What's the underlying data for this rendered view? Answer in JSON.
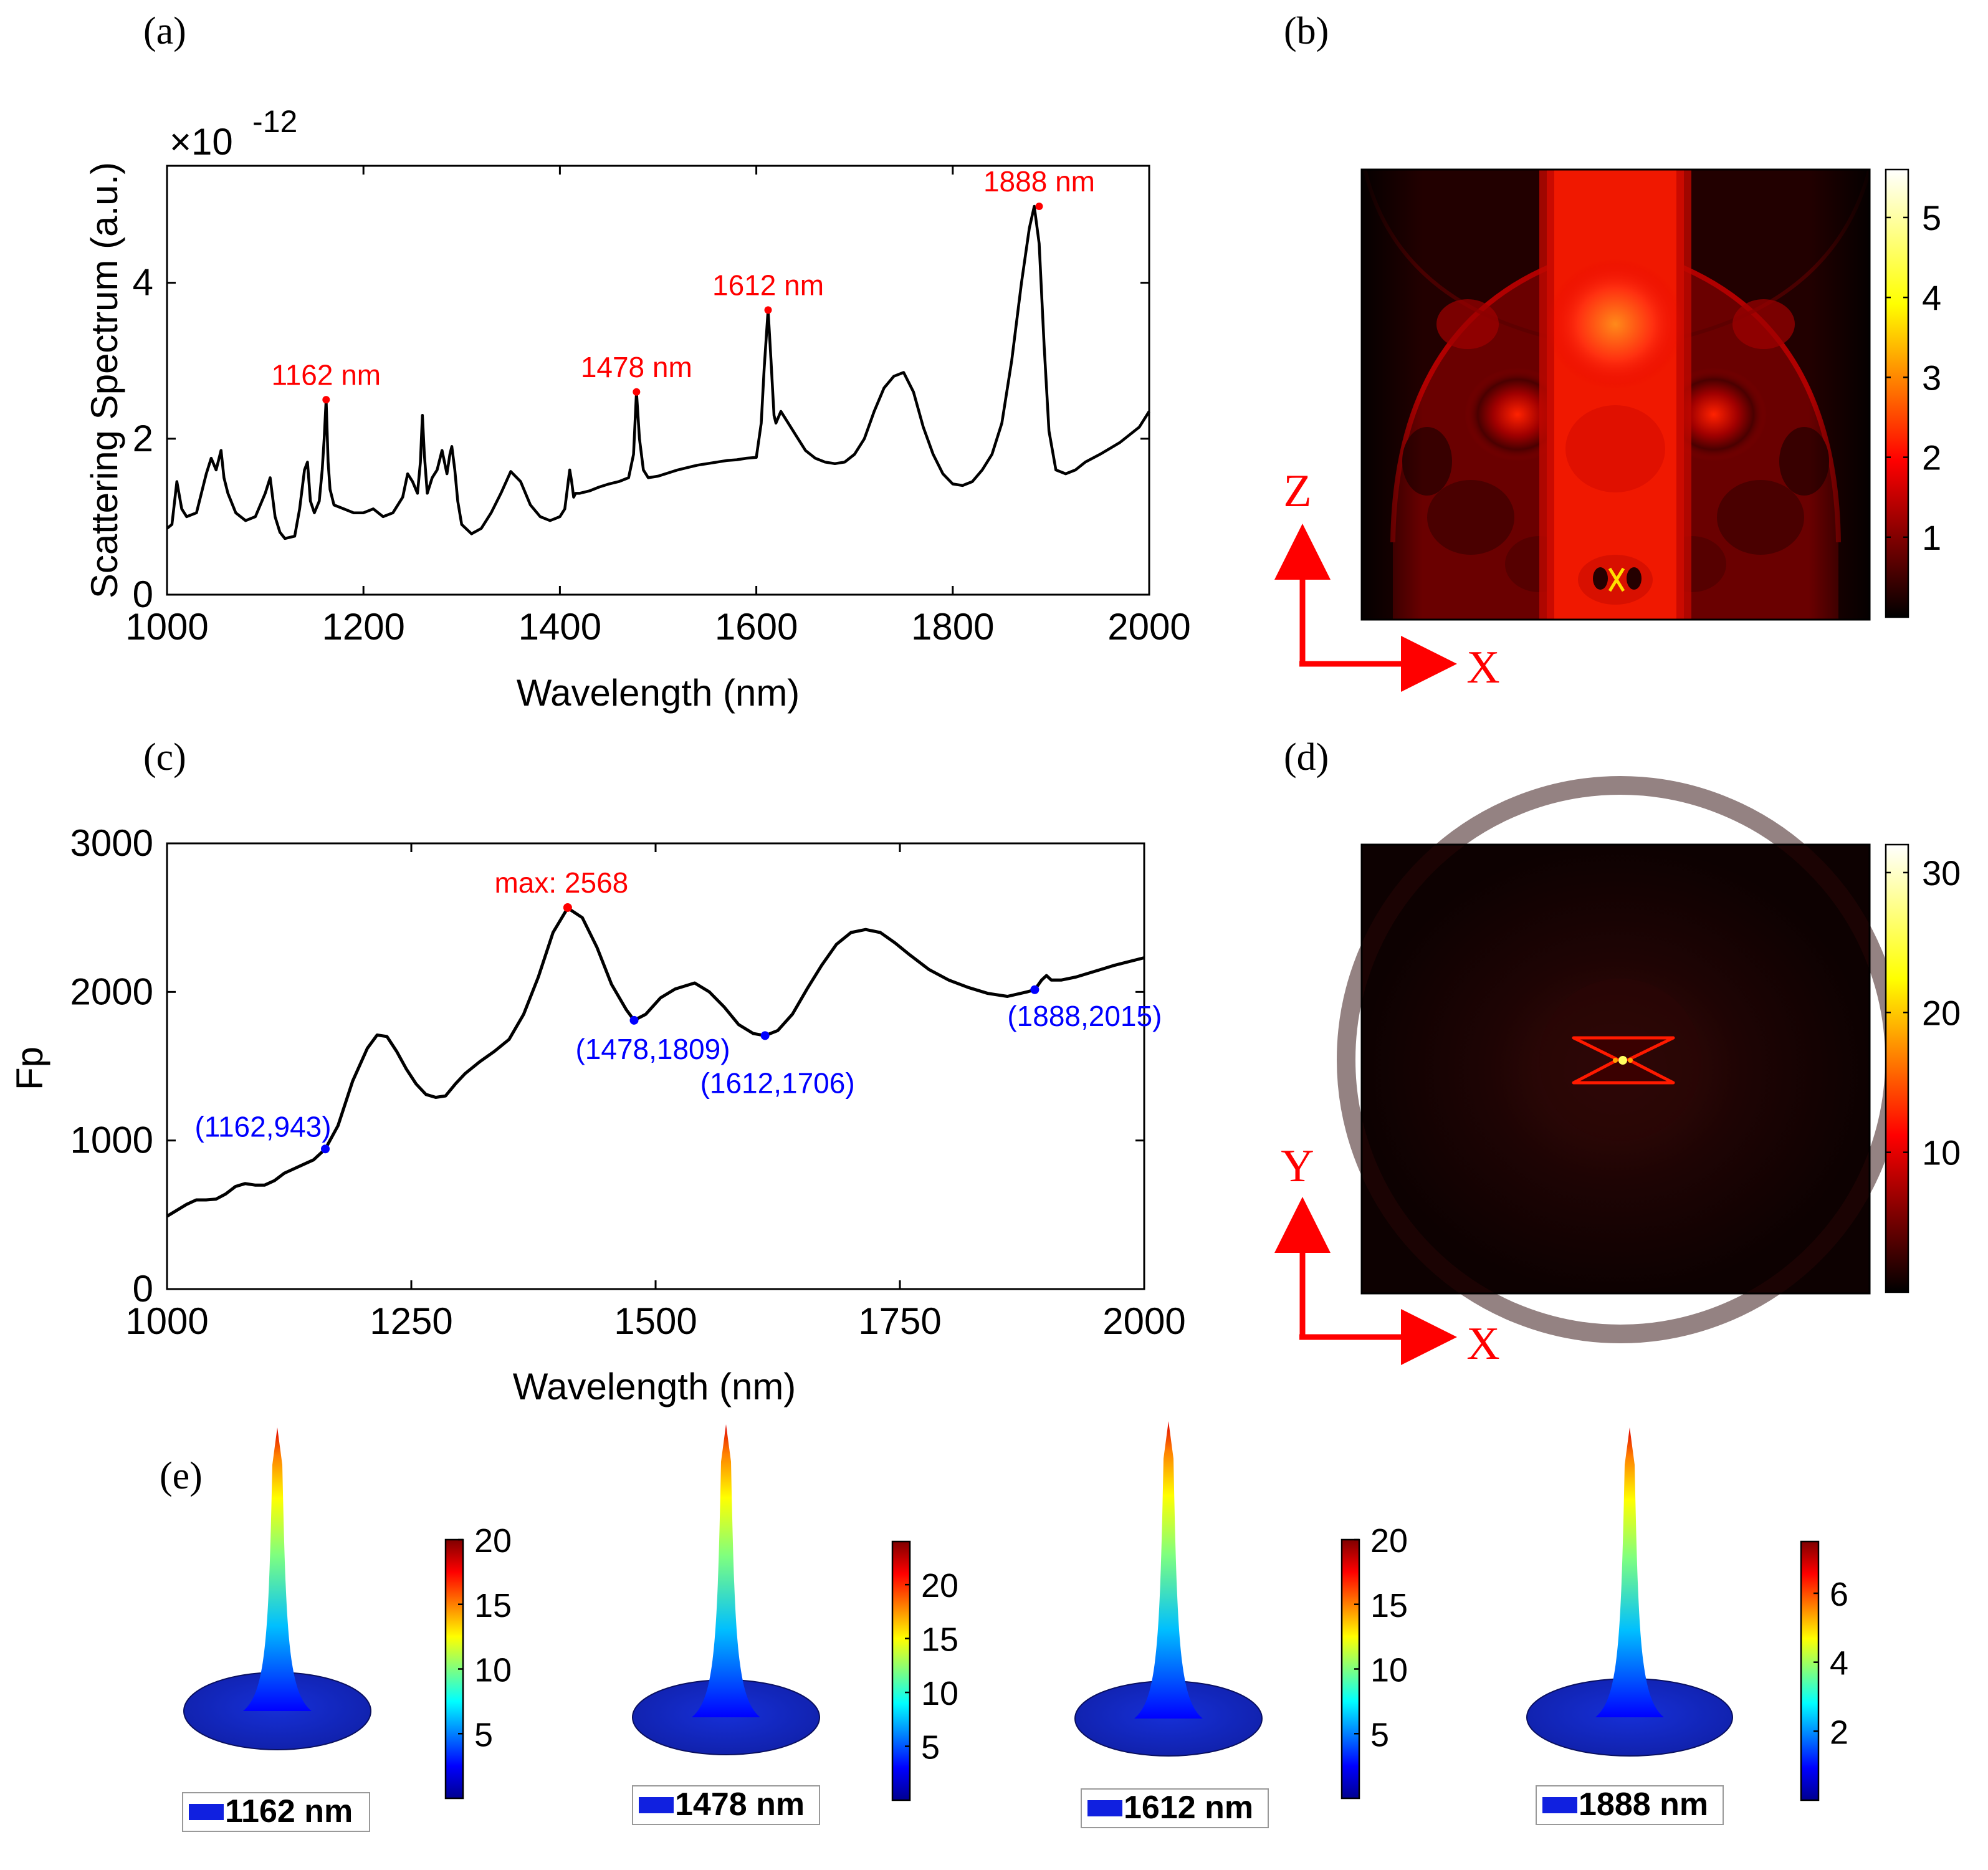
{
  "panels": {
    "a": {
      "label": "(a)"
    },
    "b": {
      "label": "(b)"
    },
    "c": {
      "label": "(c)"
    },
    "d": {
      "label": "(d)"
    },
    "e": {
      "label": "(e)"
    }
  },
  "chart_data": [
    {
      "id": "a",
      "type": "line",
      "xlabel": "Wavelength (nm)",
      "ylabel": "Scattering Spectrum (a.u.)",
      "exponent_prefix": "×10",
      "exponent_power": "-12",
      "xlim": [
        1000,
        2000
      ],
      "ylim": [
        0,
        5.5
      ],
      "xticks": [
        1000,
        1200,
        1400,
        1600,
        1800,
        2000
      ],
      "yticks": [
        0,
        2,
        4
      ],
      "line_color": "#000000",
      "annotation_color": "#ff0000",
      "series": [
        {
          "name": "scattering",
          "x": [
            1000,
            1005,
            1010,
            1015,
            1020,
            1030,
            1040,
            1045,
            1050,
            1055,
            1058,
            1062,
            1070,
            1080,
            1090,
            1100,
            1105,
            1110,
            1115,
            1120,
            1130,
            1135,
            1140,
            1143,
            1146,
            1150,
            1155,
            1158,
            1160,
            1162,
            1164,
            1166,
            1170,
            1180,
            1190,
            1200,
            1210,
            1220,
            1230,
            1240,
            1245,
            1250,
            1255,
            1258,
            1260,
            1262,
            1265,
            1270,
            1275,
            1280,
            1285,
            1288,
            1290,
            1293,
            1296,
            1300,
            1310,
            1320,
            1330,
            1340,
            1350,
            1360,
            1370,
            1380,
            1390,
            1400,
            1405,
            1410,
            1412,
            1414,
            1416,
            1420,
            1430,
            1440,
            1450,
            1460,
            1470,
            1475,
            1478,
            1481,
            1485,
            1490,
            1500,
            1510,
            1520,
            1530,
            1540,
            1550,
            1560,
            1570,
            1580,
            1590,
            1600,
            1605,
            1608,
            1612,
            1615,
            1618,
            1620,
            1625,
            1630,
            1640,
            1650,
            1660,
            1670,
            1680,
            1690,
            1700,
            1710,
            1720,
            1730,
            1740,
            1750,
            1760,
            1770,
            1780,
            1790,
            1800,
            1810,
            1820,
            1830,
            1840,
            1850,
            1860,
            1870,
            1878,
            1883,
            1888,
            1893,
            1898,
            1905,
            1915,
            1925,
            1935,
            1950,
            1970,
            1990,
            2000
          ],
          "y": [
            0.85,
            0.9,
            1.45,
            1.1,
            1.0,
            1.05,
            1.55,
            1.75,
            1.6,
            1.85,
            1.5,
            1.3,
            1.05,
            0.95,
            1.0,
            1.3,
            1.5,
            1.0,
            0.8,
            0.72,
            0.75,
            1.1,
            1.6,
            1.7,
            1.2,
            1.05,
            1.2,
            1.6,
            2.0,
            2.5,
            1.7,
            1.35,
            1.15,
            1.1,
            1.05,
            1.05,
            1.1,
            1.0,
            1.05,
            1.25,
            1.55,
            1.45,
            1.3,
            1.7,
            2.3,
            1.8,
            1.3,
            1.5,
            1.6,
            1.85,
            1.55,
            1.8,
            1.9,
            1.6,
            1.2,
            0.9,
            0.78,
            0.85,
            1.05,
            1.3,
            1.58,
            1.45,
            1.15,
            1.0,
            0.95,
            1.0,
            1.1,
            1.6,
            1.45,
            1.25,
            1.3,
            1.3,
            1.33,
            1.38,
            1.42,
            1.45,
            1.5,
            1.8,
            2.6,
            2.0,
            1.6,
            1.5,
            1.52,
            1.56,
            1.6,
            1.63,
            1.66,
            1.68,
            1.7,
            1.72,
            1.73,
            1.75,
            1.76,
            2.2,
            2.9,
            3.65,
            3.0,
            2.3,
            2.2,
            2.35,
            2.25,
            2.05,
            1.85,
            1.75,
            1.7,
            1.68,
            1.7,
            1.8,
            2.0,
            2.35,
            2.65,
            2.8,
            2.85,
            2.6,
            2.15,
            1.8,
            1.55,
            1.42,
            1.4,
            1.45,
            1.6,
            1.8,
            2.2,
            3.0,
            4.0,
            4.7,
            4.98,
            4.5,
            3.2,
            2.1,
            1.6,
            1.55,
            1.6,
            1.7,
            1.8,
            1.95,
            2.15,
            2.35
          ]
        }
      ],
      "peaks": [
        {
          "x": 1162,
          "y": 2.5,
          "label": "1162 nm"
        },
        {
          "x": 1478,
          "y": 2.6,
          "label": "1478 nm"
        },
        {
          "x": 1612,
          "y": 3.65,
          "label": "1612 nm"
        },
        {
          "x": 1888,
          "y": 4.98,
          "label": "1888 nm"
        }
      ]
    },
    {
      "id": "b",
      "type": "heatmap",
      "colormap": "hot",
      "colorbar_ticks": [
        "1",
        "2",
        "3",
        "4",
        "5"
      ],
      "vmin": 0,
      "vmax": 5.6,
      "axis_vertical": "Z",
      "axis_horizontal": "X",
      "axis_color": "#ff0000"
    },
    {
      "id": "c",
      "type": "line",
      "xlabel": "Wavelength (nm)",
      "ylabel": "Fp",
      "xlim": [
        1000,
        2000
      ],
      "ylim": [
        0,
        3000
      ],
      "xticks": [
        1000,
        1250,
        1500,
        1750,
        2000
      ],
      "yticks": [
        0,
        1000,
        2000,
        3000
      ],
      "line_color": "#000000",
      "max_color": "#ff0000",
      "point_color": "#0000ff",
      "series": [
        {
          "name": "Fp",
          "x": [
            1000,
            1010,
            1020,
            1030,
            1040,
            1050,
            1060,
            1070,
            1080,
            1090,
            1100,
            1110,
            1120,
            1130,
            1140,
            1150,
            1162,
            1175,
            1190,
            1205,
            1215,
            1225,
            1235,
            1245,
            1255,
            1265,
            1275,
            1285,
            1295,
            1305,
            1320,
            1335,
            1350,
            1365,
            1380,
            1395,
            1410,
            1425,
            1440,
            1455,
            1470,
            1478,
            1490,
            1505,
            1520,
            1540,
            1555,
            1570,
            1585,
            1600,
            1612,
            1625,
            1640,
            1655,
            1670,
            1685,
            1700,
            1715,
            1730,
            1745,
            1760,
            1780,
            1800,
            1820,
            1840,
            1860,
            1880,
            1888,
            1895,
            1900,
            1905,
            1915,
            1930,
            1950,
            1970,
            2000
          ],
          "y": [
            490,
            530,
            570,
            600,
            600,
            605,
            640,
            690,
            710,
            700,
            700,
            730,
            780,
            810,
            840,
            870,
            943,
            1100,
            1400,
            1620,
            1710,
            1700,
            1600,
            1480,
            1380,
            1310,
            1290,
            1300,
            1380,
            1450,
            1530,
            1600,
            1680,
            1850,
            2100,
            2400,
            2565,
            2500,
            2300,
            2050,
            1880,
            1809,
            1850,
            1960,
            2020,
            2060,
            2000,
            1900,
            1780,
            1720,
            1706,
            1740,
            1850,
            2020,
            2180,
            2320,
            2400,
            2420,
            2400,
            2330,
            2250,
            2150,
            2080,
            2030,
            1990,
            1970,
            2000,
            2015,
            2080,
            2110,
            2080,
            2080,
            2100,
            2140,
            2180,
            2230
          ]
        }
      ],
      "max_point": {
        "x": 1410,
        "y": 2568,
        "label": "max: 2568"
      },
      "points": [
        {
          "x": 1162,
          "y": 943,
          "label": "(1162,943)"
        },
        {
          "x": 1478,
          "y": 1809,
          "label": "(1478,1809)"
        },
        {
          "x": 1612,
          "y": 1706,
          "label": "(1612,1706)"
        },
        {
          "x": 1888,
          "y": 2015,
          "label": "(1888,2015)"
        }
      ]
    },
    {
      "id": "d",
      "type": "heatmap",
      "colormap": "hot",
      "colorbar_ticks": [
        "10",
        "20",
        "30"
      ],
      "vmin": 0,
      "vmax": 32,
      "axis_vertical": "Y",
      "axis_horizontal": "X",
      "axis_color": "#ff0000"
    },
    {
      "id": "e",
      "type": "surface",
      "colormap": "jet",
      "surfaces": [
        {
          "legend": "1162 nm",
          "ticks": [
            "5",
            "10",
            "15",
            "20"
          ],
          "vmax": 20,
          "peak": 20
        },
        {
          "legend": "1478 nm",
          "ticks": [
            "5",
            "10",
            "15",
            "20"
          ],
          "vmax": 24,
          "peak": 24
        },
        {
          "legend": "1612 nm",
          "ticks": [
            "5",
            "10",
            "15",
            "20"
          ],
          "vmax": 20,
          "peak": 20
        },
        {
          "legend": "1888 nm",
          "ticks": [
            "2",
            "4",
            "6"
          ],
          "vmax": 7.5,
          "peak": 7.5
        }
      ]
    }
  ]
}
